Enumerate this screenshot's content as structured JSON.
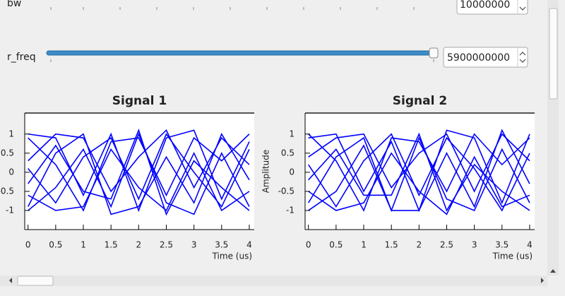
{
  "controls": [
    {
      "label": "bw",
      "value": "10000000"
    },
    {
      "label": "r_freq",
      "value": "5900000000"
    }
  ],
  "chart_data": [
    {
      "type": "line",
      "title": "Signal 1",
      "xlabel": "Time (us)",
      "x": [
        0,
        0.5,
        1,
        1.5,
        2,
        2.5,
        3,
        3.5,
        4
      ],
      "xlim": [
        -0.06,
        4.09
      ],
      "ylim": [
        -1.5,
        1.55
      ],
      "xticks": [
        0,
        0.5,
        1,
        1.5,
        2,
        2.5,
        3,
        3.5,
        4
      ],
      "yticks": [
        1,
        0.5,
        0,
        -0.5,
        -1
      ],
      "color": "#0000ff",
      "series": [
        {
          "values": [
            1,
            0.9,
            -0.6,
            1.0,
            -1.0,
            0.9,
            1.1,
            -0.7,
            0.8
          ]
        },
        {
          "values": [
            -1,
            -0.4,
            0.6,
            -0.9,
            1.0,
            -0.8,
            -1.1,
            0.5,
            -0.9
          ]
        },
        {
          "values": [
            0.3,
            1.0,
            0.9,
            -0.5,
            0.4,
            1.1,
            -0.4,
            0.9,
            0.2
          ]
        },
        {
          "values": [
            -0.6,
            -1.0,
            -0.9,
            0.6,
            -0.4,
            -1.0,
            0.5,
            -1.0,
            -0.5
          ]
        },
        {
          "values": [
            0.9,
            0.2,
            -1.0,
            0.8,
            0.9,
            -0.6,
            0.9,
            0.3,
            1.0
          ]
        },
        {
          "values": [
            -0.9,
            0.5,
            1.0,
            -1.1,
            -0.9,
            0.4,
            -0.8,
            1.0,
            -0.2
          ]
        },
        {
          "values": [
            0.1,
            -0.8,
            0.4,
            0.9,
            -0.7,
            1.0,
            0.0,
            -0.9,
            0.6
          ]
        },
        {
          "values": [
            -0.3,
            0.7,
            -0.5,
            -0.7,
            1.1,
            -1.1,
            0.3,
            -0.4,
            -1.0
          ]
        }
      ]
    },
    {
      "type": "line",
      "title": "Signal 2",
      "xlabel": "Time (us)",
      "ylabel": "Amplitude",
      "x": [
        0,
        0.5,
        1,
        1.5,
        2,
        2.5,
        3,
        3.5,
        4
      ],
      "xlim": [
        -0.06,
        4.09
      ],
      "ylim": [
        -1.5,
        1.55
      ],
      "xticks": [
        0,
        0.5,
        1,
        1.5,
        2,
        2.5,
        3,
        3.5,
        4
      ],
      "yticks": [
        1,
        0.5,
        0,
        -0.5,
        -1
      ],
      "color": "#0000ff",
      "series": [
        {
          "values": [
            0.9,
            1.0,
            -0.5,
            0.8,
            -1.0,
            1.1,
            0.9,
            -0.8,
            1.0
          ]
        },
        {
          "values": [
            -1.0,
            -0.5,
            0.7,
            -1.0,
            0.9,
            -0.7,
            -1.0,
            0.6,
            -0.8
          ]
        },
        {
          "values": [
            0.4,
            0.9,
            1.0,
            -0.4,
            0.5,
            1.0,
            -0.5,
            1.0,
            0.3
          ]
        },
        {
          "values": [
            -0.5,
            -1.0,
            -0.8,
            0.5,
            -0.5,
            -1.1,
            0.4,
            -0.9,
            -0.6
          ]
        },
        {
          "values": [
            1.0,
            0.3,
            -1.0,
            0.9,
            0.8,
            -0.5,
            1.0,
            0.2,
            0.9
          ]
        },
        {
          "values": [
            -0.8,
            0.4,
            0.9,
            -1.0,
            -1.0,
            0.5,
            -0.9,
            1.1,
            -0.3
          ]
        },
        {
          "values": [
            0.2,
            -0.9,
            0.3,
            1.0,
            -0.6,
            0.9,
            0.1,
            -1.0,
            0.5
          ]
        },
        {
          "values": [
            -0.2,
            0.6,
            -0.6,
            -0.6,
            1.0,
            -1.0,
            0.2,
            -0.5,
            -1.0
          ]
        }
      ]
    }
  ]
}
